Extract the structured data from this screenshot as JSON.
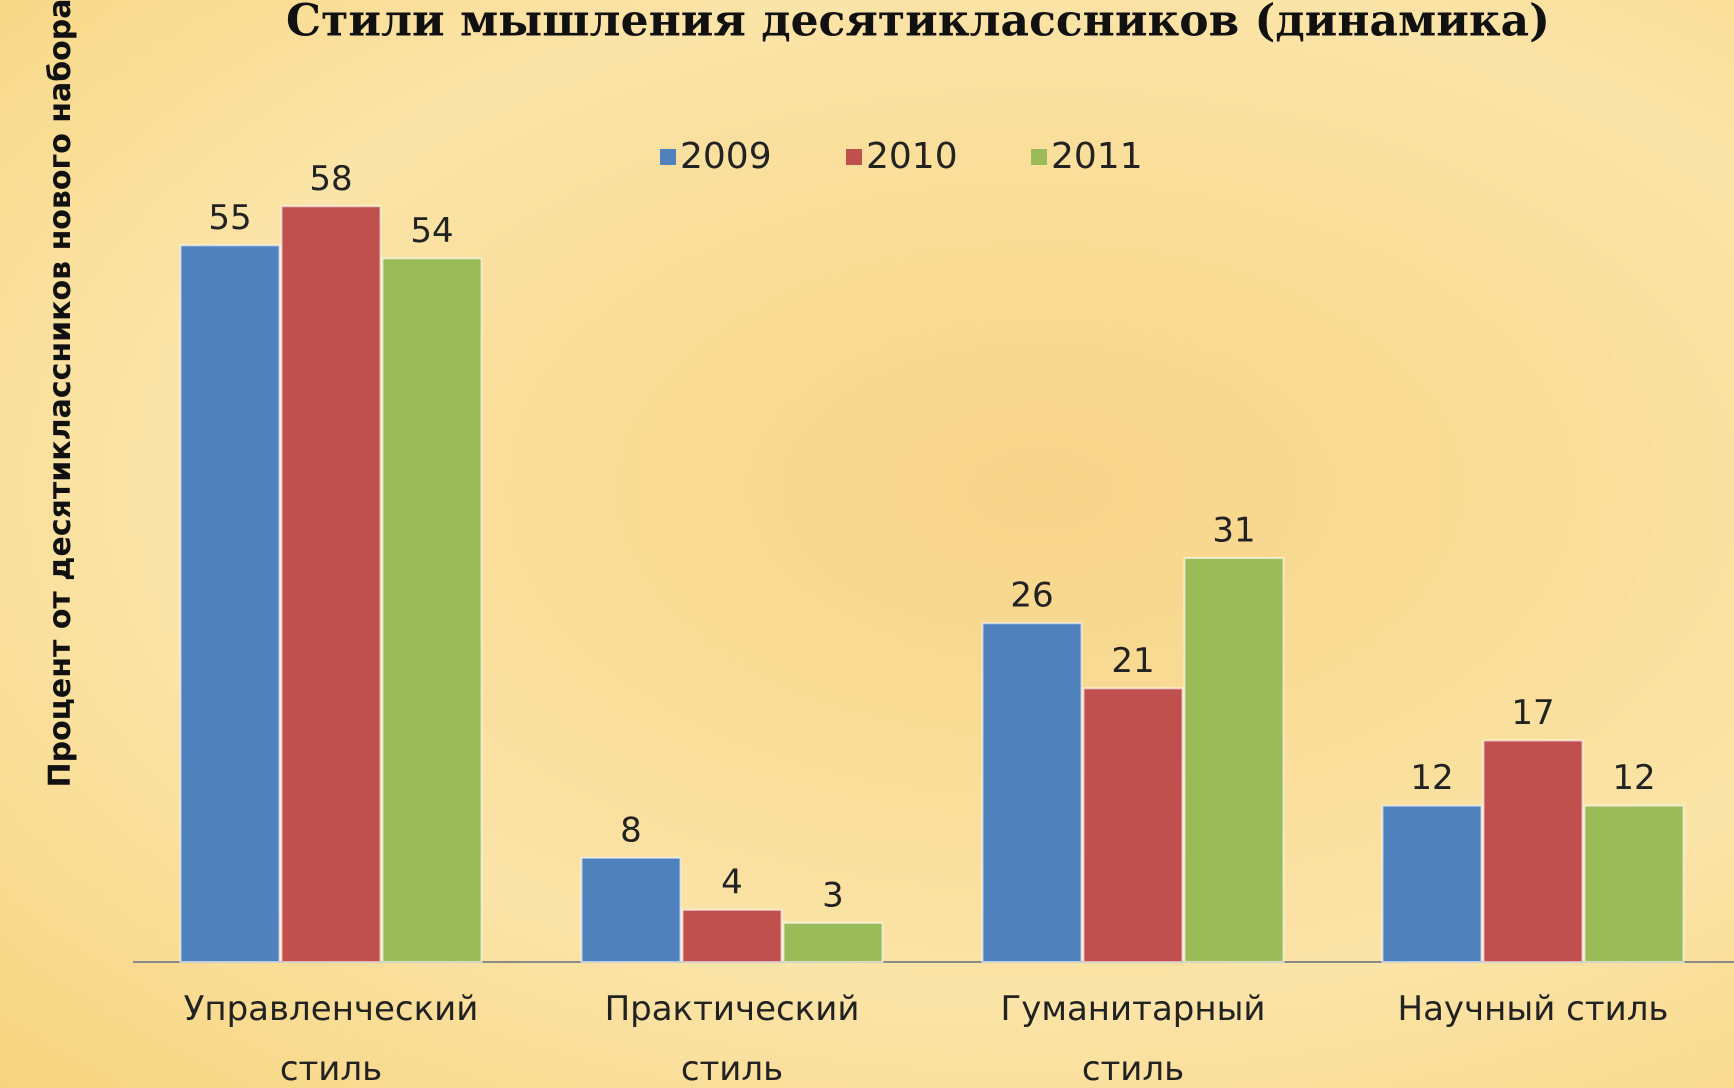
{
  "chart_data": {
    "type": "bar",
    "title": "Стили мышления десятиклассников (динамика)",
    "y_label": "Процент от десятиклассников нового набора",
    "categories": [
      "Управленческий стиль",
      "Практический стиль",
      "Гуманитарный стиль",
      "Научный стиль"
    ],
    "series": [
      {
        "name": "2009",
        "color": "#4f81bd",
        "values": [
          55,
          8,
          26,
          12
        ]
      },
      {
        "name": "2010",
        "color": "#c0504d",
        "values": [
          58,
          4,
          21,
          17
        ]
      },
      {
        "name": "2011",
        "color": "#9bbb59",
        "values": [
          54,
          3,
          31,
          12
        ]
      }
    ]
  }
}
